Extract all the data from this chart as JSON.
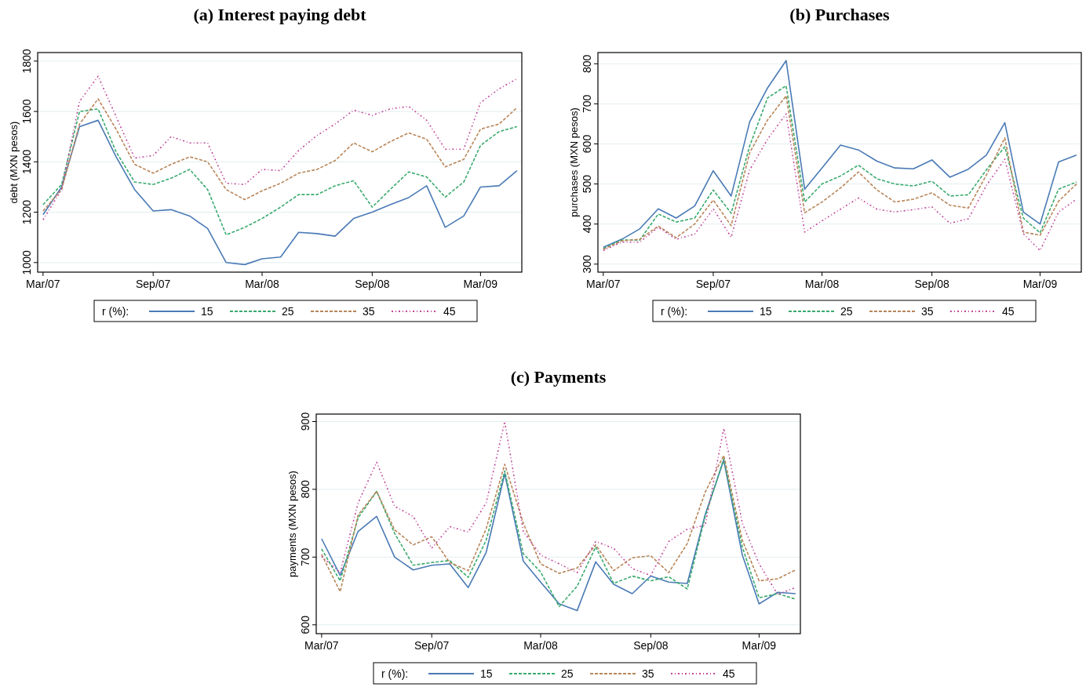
{
  "chart_data": [
    {
      "type": "line",
      "title": "(a) Interest paying debt",
      "ylabel": "debt (MXN pesos)",
      "legend_title": "r (%):",
      "legend": "bottom",
      "grid": "y",
      "x": [
        "2007-03",
        "2007-04",
        "2007-05",
        "2007-06",
        "2007-07",
        "2007-08",
        "2007-09",
        "2007-10",
        "2007-11",
        "2007-12",
        "2008-01",
        "2008-02",
        "2008-03",
        "2008-04",
        "2008-05",
        "2008-06",
        "2008-07",
        "2008-08",
        "2008-09",
        "2008-10",
        "2008-11",
        "2008-12",
        "2009-01",
        "2009-02",
        "2009-03",
        "2009-04",
        "2009-05"
      ],
      "xlim": [
        "2007-02-20",
        "2009-05-09"
      ],
      "xticks": [
        {
          "value": "2007-03",
          "label": "Mar/07"
        },
        {
          "value": "2007-09",
          "label": "Sep/07"
        },
        {
          "value": "2008-03",
          "label": "Mar/08"
        },
        {
          "value": "2008-09",
          "label": "Sep/08"
        },
        {
          "value": "2009-03",
          "label": "Mar/09"
        }
      ],
      "ylim": [
        962,
        1834
      ],
      "yticks": [
        1000,
        1200,
        1400,
        1600,
        1800
      ],
      "series": [
        {
          "name": "15",
          "color": "#4a7ab5",
          "line_style": "solid",
          "values": [
            1190,
            1300,
            1540,
            1565,
            1420,
            1290,
            1205,
            1210,
            1185,
            1135,
            1000,
            992,
            1015,
            1022,
            1120,
            1115,
            1105,
            1175,
            1200,
            1230,
            1258,
            1305,
            1140,
            1185,
            1300,
            1305,
            1365
          ]
        },
        {
          "name": "25",
          "color": "#3aaa6e",
          "line_style": "dashed",
          "values": [
            1230,
            1310,
            1600,
            1610,
            1440,
            1320,
            1310,
            1335,
            1370,
            1290,
            1110,
            1140,
            1175,
            1220,
            1270,
            1270,
            1305,
            1325,
            1220,
            1290,
            1360,
            1340,
            1260,
            1320,
            1465,
            1520,
            1540
          ]
        },
        {
          "name": "35",
          "color": "#b8865a",
          "line_style": "dashed",
          "values": [
            1205,
            1290,
            1550,
            1650,
            1530,
            1390,
            1355,
            1390,
            1420,
            1400,
            1290,
            1250,
            1285,
            1315,
            1355,
            1370,
            1405,
            1475,
            1440,
            1480,
            1515,
            1490,
            1380,
            1410,
            1530,
            1550,
            1615
          ]
        },
        {
          "name": "45",
          "color": "#c0479a",
          "line_style": "dotted",
          "values": [
            1170,
            1290,
            1640,
            1740,
            1580,
            1415,
            1425,
            1500,
            1475,
            1475,
            1315,
            1310,
            1370,
            1365,
            1445,
            1505,
            1550,
            1605,
            1585,
            1610,
            1620,
            1565,
            1450,
            1450,
            1635,
            1690,
            1730
          ]
        }
      ]
    },
    {
      "type": "line",
      "title": "(b) Purchases",
      "ylabel": "purchases (MXN pesos)",
      "legend_title": "r (%):",
      "legend": "bottom",
      "grid": "y",
      "x": [
        "2007-03",
        "2007-04",
        "2007-05",
        "2007-06",
        "2007-07",
        "2007-08",
        "2007-09",
        "2007-10",
        "2007-11",
        "2007-12",
        "2008-01",
        "2008-02",
        "2008-03",
        "2008-04",
        "2008-05",
        "2008-06",
        "2008-07",
        "2008-08",
        "2008-09",
        "2008-10",
        "2008-11",
        "2008-12",
        "2009-01",
        "2009-02",
        "2009-03",
        "2009-04",
        "2009-05"
      ],
      "xlim": [
        "2007-02-20",
        "2009-05-09"
      ],
      "xticks": [
        {
          "value": "2007-03",
          "label": "Mar/07"
        },
        {
          "value": "2007-09",
          "label": "Sep/07"
        },
        {
          "value": "2008-03",
          "label": "Mar/08"
        },
        {
          "value": "2008-09",
          "label": "Sep/08"
        },
        {
          "value": "2009-03",
          "label": "Mar/09"
        }
      ],
      "ylim": [
        280,
        828
      ],
      "yticks": [
        300,
        400,
        500,
        600,
        700,
        800
      ],
      "series": [
        {
          "name": "15",
          "color": "#4a7ab5",
          "line_style": "solid",
          "values": [
            342,
            362,
            388,
            438,
            415,
            445,
            533,
            470,
            655,
            740,
            808,
            487,
            540,
            597,
            585,
            557,
            540,
            538,
            560,
            517,
            537,
            572,
            653,
            430,
            400,
            555,
            572
          ]
        },
        {
          "name": "25",
          "color": "#3aaa6e",
          "line_style": "dashed",
          "values": [
            339,
            360,
            360,
            425,
            405,
            415,
            485,
            427,
            595,
            715,
            745,
            455,
            500,
            520,
            547,
            513,
            500,
            495,
            507,
            470,
            473,
            535,
            593,
            415,
            378,
            487,
            505
          ]
        },
        {
          "name": "35",
          "color": "#b8865a",
          "line_style": "dashed",
          "values": [
            337,
            358,
            362,
            395,
            366,
            400,
            460,
            396,
            578,
            660,
            720,
            428,
            455,
            490,
            530,
            485,
            455,
            462,
            478,
            447,
            440,
            522,
            615,
            380,
            372,
            457,
            500
          ]
        },
        {
          "name": "45",
          "color": "#c0479a",
          "line_style": "dotted",
          "values": [
            334,
            355,
            355,
            392,
            362,
            375,
            438,
            367,
            535,
            612,
            675,
            380,
            408,
            437,
            465,
            437,
            430,
            436,
            443,
            402,
            413,
            496,
            562,
            376,
            334,
            430,
            462
          ]
        }
      ]
    },
    {
      "type": "line",
      "title": "(c) Payments",
      "ylabel": "payments (MXN pesos)",
      "legend_title": "r (%):",
      "legend": "bottom",
      "grid": "y",
      "x": [
        "2007-03",
        "2007-04",
        "2007-05",
        "2007-06",
        "2007-07",
        "2007-08",
        "2007-09",
        "2007-10",
        "2007-11",
        "2007-12",
        "2008-01",
        "2008-02",
        "2008-03",
        "2008-04",
        "2008-05",
        "2008-06",
        "2008-07",
        "2008-08",
        "2008-09",
        "2008-10",
        "2008-11",
        "2008-12",
        "2009-01",
        "2009-02",
        "2009-03",
        "2009-04",
        "2009-05"
      ],
      "xlim": [
        "2007-02-20",
        "2009-05-09"
      ],
      "xticks": [
        {
          "value": "2007-03",
          "label": "Mar/07"
        },
        {
          "value": "2007-09",
          "label": "Sep/07"
        },
        {
          "value": "2008-03",
          "label": "Mar/08"
        },
        {
          "value": "2008-09",
          "label": "Sep/08"
        },
        {
          "value": "2009-03",
          "label": "Mar/09"
        }
      ],
      "ylim": [
        587,
        911
      ],
      "yticks": [
        600,
        700,
        800,
        900
      ],
      "series": [
        {
          "name": "15",
          "color": "#4a7ab5",
          "line_style": "solid",
          "values": [
            727,
            673,
            738,
            760,
            700,
            681,
            688,
            690,
            655,
            707,
            823,
            694,
            663,
            631,
            621,
            693,
            660,
            646,
            672,
            663,
            661,
            763,
            843,
            703,
            631,
            648,
            646
          ]
        },
        {
          "name": "25",
          "color": "#3aaa6e",
          "line_style": "dashed",
          "values": [
            712,
            665,
            758,
            797,
            735,
            688,
            692,
            695,
            670,
            725,
            827,
            705,
            678,
            627,
            657,
            715,
            661,
            672,
            665,
            671,
            653,
            760,
            845,
            715,
            640,
            646,
            638
          ]
        },
        {
          "name": "35",
          "color": "#b8865a",
          "line_style": "dashed",
          "values": [
            704,
            649,
            762,
            797,
            740,
            718,
            730,
            692,
            680,
            742,
            837,
            750,
            690,
            676,
            684,
            718,
            680,
            699,
            702,
            677,
            720,
            796,
            850,
            725,
            665,
            668,
            681
          ]
        },
        {
          "name": "45",
          "color": "#c0479a",
          "line_style": "dotted",
          "values": [
            701,
            677,
            780,
            840,
            775,
            760,
            713,
            745,
            737,
            780,
            900,
            738,
            703,
            690,
            677,
            723,
            713,
            683,
            673,
            723,
            741,
            747,
            890,
            750,
            690,
            645,
            655
          ]
        }
      ]
    }
  ]
}
